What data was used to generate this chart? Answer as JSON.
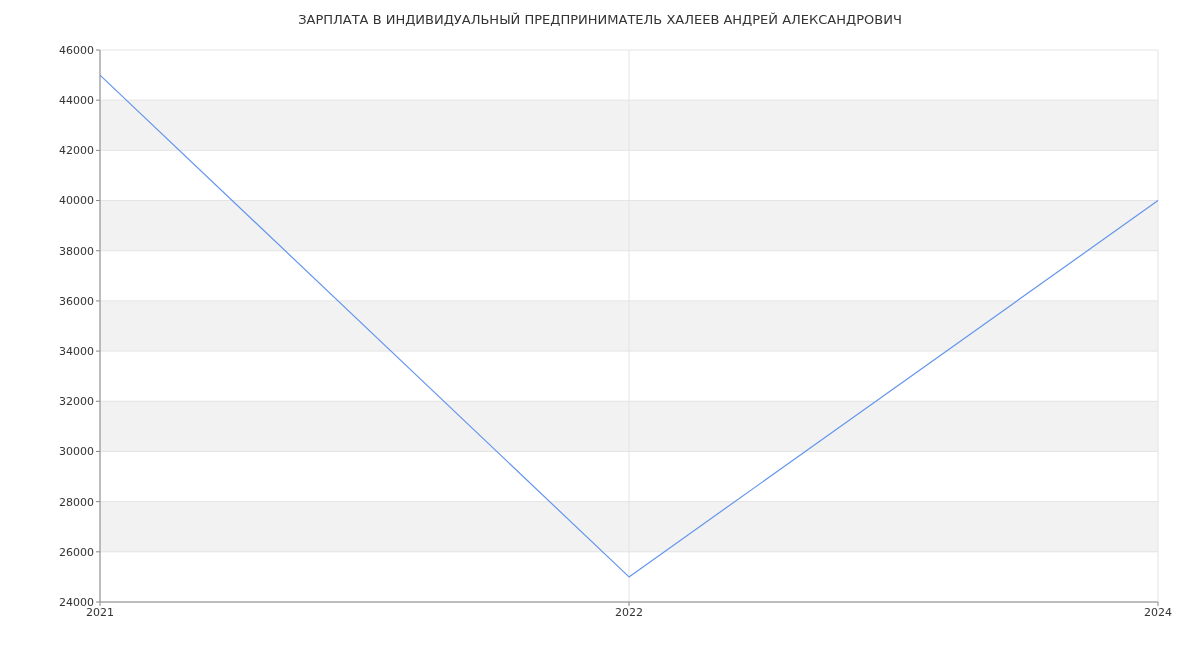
{
  "chart_data": {
    "type": "line",
    "title": "ЗАРПЛАТА В ИНДИВИДУАЛЬНЫЙ ПРЕДПРИНИМАТЕЛЬ ХАЛЕЕВ АНДРЕЙ АЛЕКСАНДРОВИЧ",
    "categories": [
      "2021",
      "2022",
      "2024"
    ],
    "series": [
      {
        "color": "#6495ed",
        "values": [
          45000,
          25000,
          40000
        ]
      }
    ],
    "ylim": [
      24000,
      46000
    ],
    "yticks": [
      24000,
      26000,
      28000,
      30000,
      32000,
      34000,
      36000,
      38000,
      40000,
      42000,
      44000,
      46000
    ],
    "grid": true,
    "marker": "none",
    "line_style": "solid"
  }
}
